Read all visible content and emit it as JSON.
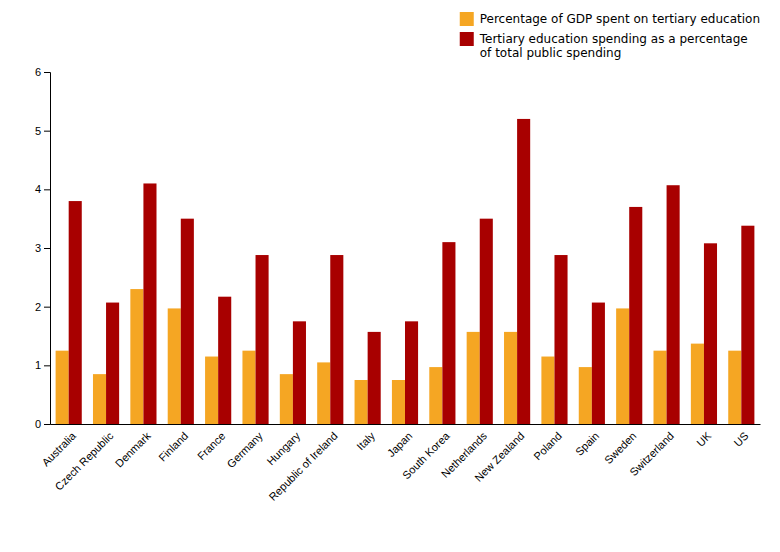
{
  "chart_data": {
    "type": "bar",
    "categories": [
      "Australia",
      "Czech Republic",
      "Denmark",
      "Finland",
      "France",
      "Germany",
      "Hungary",
      "Republic of Ireland",
      "Italy",
      "Japan",
      "South Korea",
      "Netherlands",
      "New Zealand",
      "Poland",
      "Spain",
      "Sweden",
      "Switzerland",
      "UK",
      "US"
    ],
    "series": [
      {
        "name": "Percentage of GDP spent on tertiary education",
        "color": "#F5A623",
        "values": [
          1.25,
          0.85,
          2.3,
          1.97,
          1.15,
          1.25,
          0.85,
          1.05,
          0.75,
          0.75,
          0.97,
          1.57,
          1.57,
          1.15,
          0.97,
          1.97,
          1.25,
          1.37,
          1.25
        ]
      },
      {
        "name": "Tertiary education spending as a percentage\nof total public spending",
        "color": "#A80000",
        "values": [
          3.8,
          2.07,
          4.1,
          3.5,
          2.17,
          2.88,
          1.75,
          2.88,
          1.57,
          1.75,
          3.1,
          3.5,
          5.2,
          2.88,
          2.07,
          3.7,
          4.07,
          3.08,
          3.38
        ]
      }
    ],
    "ylim": [
      0,
      6
    ],
    "yticks": [
      0,
      1,
      2,
      3,
      4,
      5,
      6
    ],
    "grid": false,
    "legend": "upper right"
  }
}
